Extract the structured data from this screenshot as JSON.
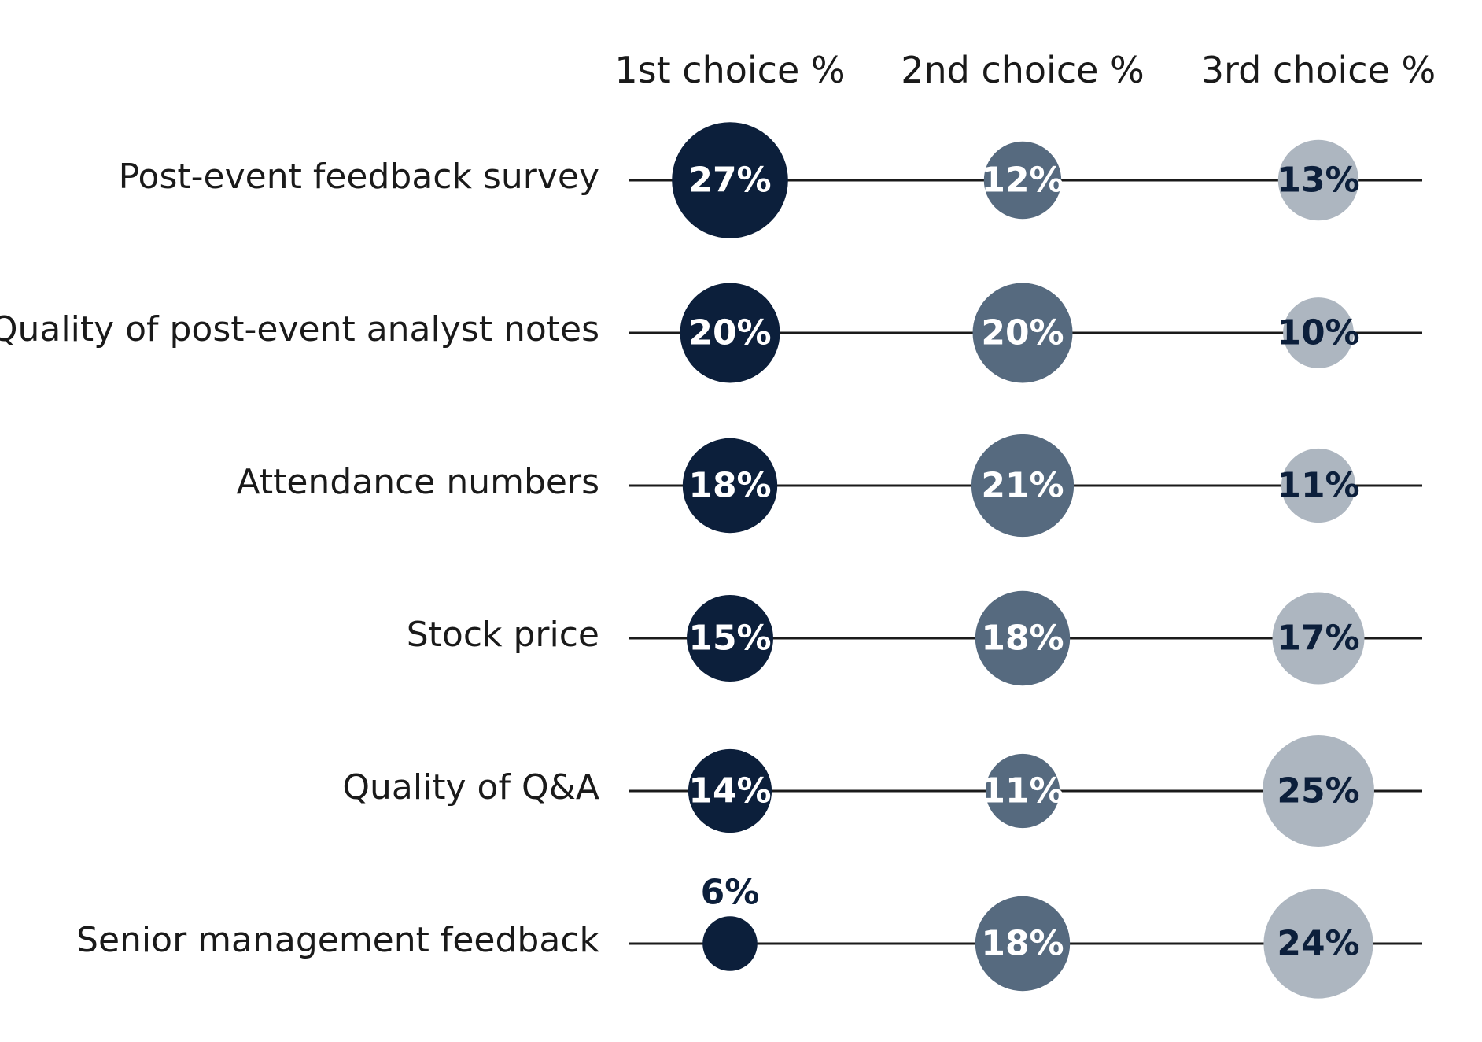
{
  "chart_data": {
    "type": "bubble-matrix",
    "title": "",
    "columns": [
      "1st choice %",
      "2nd choice %",
      "3rd choice %"
    ],
    "rows": [
      "Post-event feedback survey",
      "Quality of post-event analyst notes",
      "Attendance numbers",
      "Stock price",
      "Quality of Q&A",
      "Senior management feedback"
    ],
    "values": [
      [
        27,
        12,
        13
      ],
      [
        20,
        20,
        10
      ],
      [
        18,
        21,
        11
      ],
      [
        15,
        18,
        17
      ],
      [
        14,
        11,
        25
      ],
      [
        6,
        18,
        24
      ]
    ],
    "value_suffix": "%",
    "colors": {
      "1st choice %": "#0c1f3b",
      "2nd choice %": "#566a7f",
      "3rd choice %": "#adb6c0",
      "line": "#1a1a1a",
      "label_on_dark": "#ffffff",
      "label_on_light": "#0c1f3b"
    }
  }
}
